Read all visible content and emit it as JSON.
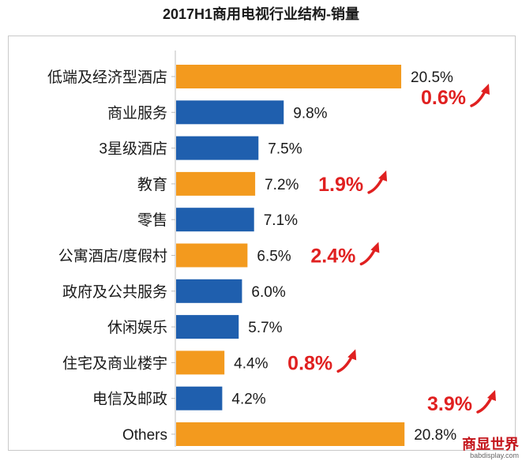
{
  "page": {
    "title": "2017H1商用电视行业结构-销量"
  },
  "colors": {
    "accent": "#f39a1e",
    "primary": "#1f5fae",
    "annotation": "#e02020"
  },
  "chart_data": {
    "type": "bar",
    "orientation": "horizontal",
    "title": "2017H1商用电视行业结构-销量",
    "categories": [
      "低端及经济型酒店",
      "商业服务",
      "3星级酒店",
      "教育",
      "零售",
      "公寓酒店/度假村",
      "政府及公共服务",
      "休闲娱乐",
      "住宅及商业楼宇",
      "电信及邮政",
      "Others"
    ],
    "values": [
      20.5,
      9.8,
      7.5,
      7.2,
      7.1,
      6.5,
      6.0,
      5.7,
      4.4,
      4.2,
      20.8
    ],
    "value_labels": [
      "20.5%",
      "9.8%",
      "7.5%",
      "7.2%",
      "7.1%",
      "6.5%",
      "6.0%",
      "5.7%",
      "4.4%",
      "4.2%",
      "20.8%"
    ],
    "highlighted": [
      true,
      false,
      false,
      true,
      false,
      true,
      false,
      false,
      true,
      false,
      true
    ],
    "xlim": [
      0,
      21
    ],
    "grid": false,
    "annotations": [
      {
        "category": "低端及经济型酒店",
        "text": "0.6%",
        "direction": "up"
      },
      {
        "category": "教育",
        "text": "1.9%",
        "direction": "up"
      },
      {
        "category": "公寓酒店/度假村",
        "text": "2.4%",
        "direction": "up"
      },
      {
        "category": "住宅及商业楼宇",
        "text": "0.8%",
        "direction": "up"
      },
      {
        "category": "Others",
        "text": "3.9%",
        "direction": "up"
      }
    ]
  },
  "footer": {
    "logo_text": "商显世界",
    "logo_sub": "babdisplay.com"
  }
}
